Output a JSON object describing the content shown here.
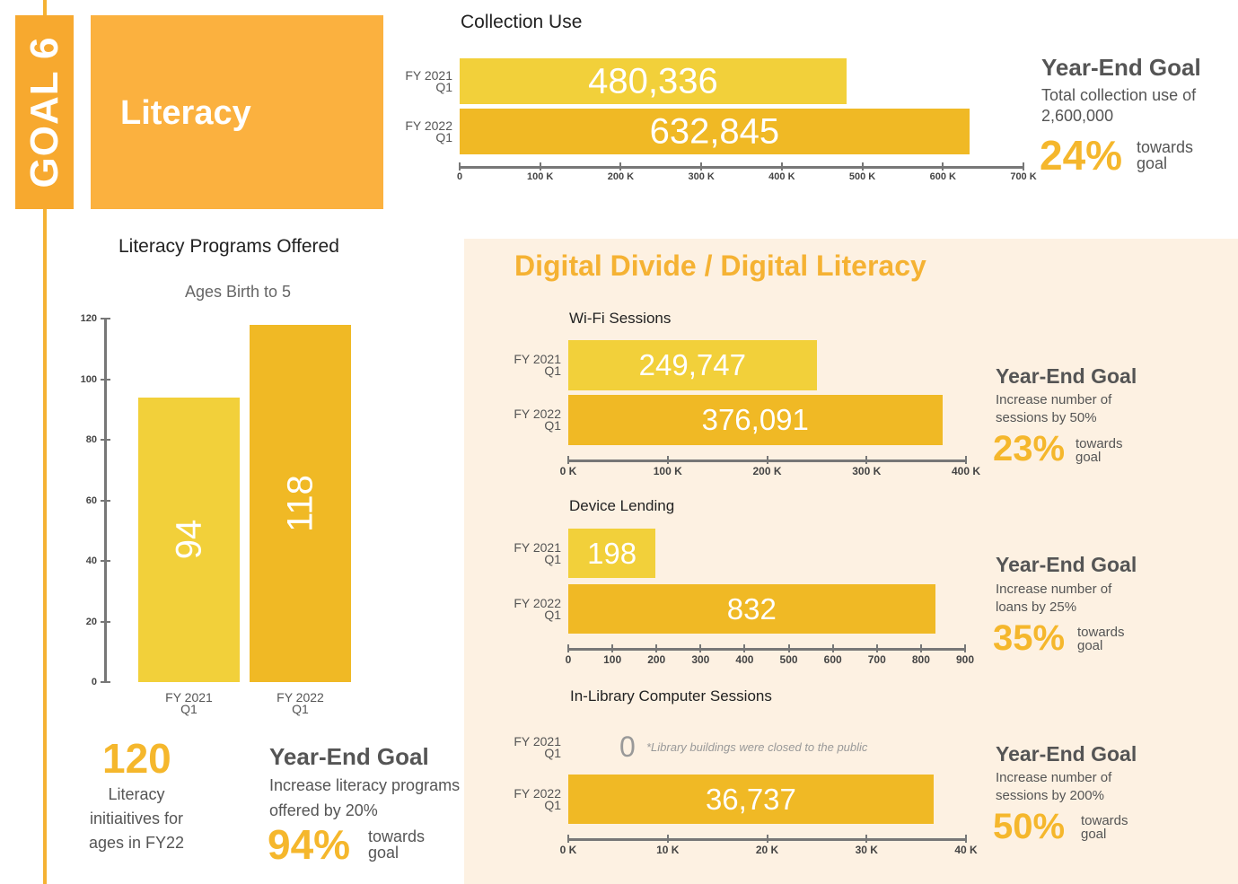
{
  "header": {
    "goal_label": "GOAL 6",
    "goal_title": "Literacy"
  },
  "collection": {
    "title": "Collection Use",
    "goal_heading": "Year-End Goal",
    "goal_desc": "Total collection use of 2,600,000",
    "goal_pct": "24%",
    "towards": "towards goal"
  },
  "programs": {
    "title": "Literacy Programs Offered",
    "subtitle": "Ages Birth to 5",
    "big_number": "120",
    "big_caption": "Literacy initiaitives for ages in FY22",
    "goal_heading": "Year-End Goal",
    "goal_desc": "Increase literacy programs offered by 20%",
    "goal_pct": "94%",
    "towards": "towards goal"
  },
  "digital": {
    "title": "Digital Divide / Digital Literacy",
    "wifi": {
      "goal_heading": "Year-End Goal",
      "goal_desc": "Increase number of sessions by 50%",
      "goal_pct": "23%",
      "towards": "towards goal"
    },
    "device": {
      "goal_heading": "Year-End Goal",
      "goal_desc": "Increase number of loans by 25%",
      "goal_pct": "35%",
      "towards": "towards goal"
    },
    "computer": {
      "goal_heading": "Year-End Goal",
      "goal_desc": "Increase number of sessions by 200%",
      "goal_pct": "50%",
      "towards": "towards goal",
      "zero_label": "0",
      "note": "*Library buildings were closed to the public"
    }
  },
  "colors": {
    "bar_light": "#f2d03a",
    "bar_dark": "#f0b925",
    "accent": "#f5b72c",
    "badge": "#f7a92f",
    "panel": "#fdf1e2"
  },
  "chart_data": [
    {
      "type": "bar",
      "orientation": "horizontal",
      "title": "Collection Use",
      "categories": [
        "FY 2021 Q1",
        "FY 2022 Q1"
      ],
      "values": [
        480336,
        632845
      ],
      "value_labels": [
        "480,336",
        "632,845"
      ],
      "xlim": [
        0,
        700000
      ],
      "ticks": [
        0,
        100000,
        200000,
        300000,
        400000,
        500000,
        600000,
        700000
      ],
      "tick_labels": [
        "0",
        "100 K",
        "200 K",
        "300 K",
        "400 K",
        "500 K",
        "600 K",
        "700 K"
      ]
    },
    {
      "type": "bar",
      "orientation": "vertical",
      "title": "Literacy Programs Offered",
      "subtitle": "Ages Birth to 5",
      "categories": [
        "FY 2021 Q1",
        "FY 2022 Q1"
      ],
      "values": [
        94,
        118
      ],
      "value_labels": [
        "94",
        "118"
      ],
      "ylim": [
        0,
        120
      ],
      "ticks": [
        0,
        20,
        40,
        60,
        80,
        100,
        120
      ],
      "tick_labels": [
        "0",
        "20",
        "40",
        "60",
        "80",
        "100",
        "120"
      ]
    },
    {
      "type": "bar",
      "orientation": "horizontal",
      "title": "Wi-Fi Sessions",
      "categories": [
        "FY 2021 Q1",
        "FY 2022 Q1"
      ],
      "values": [
        249747,
        376091
      ],
      "value_labels": [
        "249,747",
        "376,091"
      ],
      "xlim": [
        0,
        400000
      ],
      "ticks": [
        0,
        100000,
        200000,
        300000,
        400000
      ],
      "tick_labels": [
        "0 K",
        "100 K",
        "200 K",
        "300 K",
        "400 K"
      ]
    },
    {
      "type": "bar",
      "orientation": "horizontal",
      "title": "Device Lending",
      "categories": [
        "FY 2021 Q1",
        "FY 2022 Q1"
      ],
      "values": [
        198,
        832
      ],
      "value_labels": [
        "198",
        "832"
      ],
      "xlim": [
        0,
        900
      ],
      "ticks": [
        0,
        100,
        200,
        300,
        400,
        500,
        600,
        700,
        800,
        900
      ],
      "tick_labels": [
        "0",
        "100",
        "200",
        "300",
        "400",
        "500",
        "600",
        "700",
        "800",
        "900"
      ]
    },
    {
      "type": "bar",
      "orientation": "horizontal",
      "title": "In-Library Computer Sessions",
      "categories": [
        "FY 2021 Q1",
        "FY 2022 Q1"
      ],
      "values": [
        0,
        36737
      ],
      "value_labels": [
        "",
        "36,737"
      ],
      "xlim": [
        0,
        40000
      ],
      "ticks": [
        0,
        10000,
        20000,
        30000,
        40000
      ],
      "tick_labels": [
        "0 K",
        "10 K",
        "20 K",
        "30 K",
        "40 K"
      ]
    }
  ]
}
